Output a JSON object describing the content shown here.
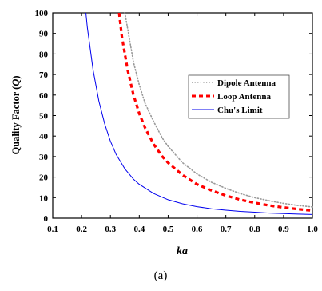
{
  "chart_data": {
    "type": "line",
    "title": "",
    "xlabel": "ka",
    "ylabel_prefix": "Quality Factor (",
    "ylabel_var": "Q",
    "ylabel_suffix": ")",
    "caption": "(a)",
    "xlim": [
      0.1,
      1.0
    ],
    "ylim": [
      0,
      100
    ],
    "xticks": [
      0.1,
      0.2,
      0.3,
      0.4,
      0.5,
      0.6,
      0.7,
      0.8,
      0.9,
      1.0
    ],
    "xtick_labels": [
      "0.1",
      "0.2",
      "0.3",
      "0.4",
      "0.5",
      "0.6",
      "0.7",
      "0.8",
      "0.9",
      "1.0"
    ],
    "yticks": [
      0,
      10,
      20,
      30,
      40,
      50,
      60,
      70,
      80,
      90,
      100
    ],
    "ytick_labels": [
      "0",
      "10",
      "20",
      "30",
      "40",
      "50",
      "60",
      "70",
      "80",
      "90",
      "100"
    ],
    "legend_position": "right",
    "series": [
      {
        "name": "Dipole Antenna",
        "color": "#9a9a9a",
        "style": "dotted",
        "x": [
          0.35,
          0.36,
          0.38,
          0.4,
          0.42,
          0.45,
          0.48,
          0.5,
          0.55,
          0.6,
          0.65,
          0.7,
          0.75,
          0.8,
          0.85,
          0.9,
          0.95,
          1.0
        ],
        "y": [
          100,
          92,
          76,
          65,
          56,
          47,
          39,
          35,
          27,
          21.5,
          17.5,
          14.5,
          12,
          10,
          8.5,
          7.2,
          6.2,
          5.5
        ]
      },
      {
        "name": "Loop Antenna",
        "color": "#ff0000",
        "style": "dashed",
        "x": [
          0.33,
          0.34,
          0.36,
          0.38,
          0.4,
          0.42,
          0.45,
          0.48,
          0.5,
          0.55,
          0.6,
          0.65,
          0.7,
          0.75,
          0.8,
          0.85,
          0.9,
          0.95,
          1.0
        ],
        "y": [
          100,
          88,
          72,
          60,
          51,
          44,
          36,
          30,
          27,
          21,
          16.5,
          13.5,
          11,
          9,
          7.5,
          6.2,
          5.2,
          4.4,
          3.7
        ]
      },
      {
        "name": "Chu's Limit",
        "color": "#0000ee",
        "style": "solid",
        "x": [
          0.215,
          0.22,
          0.24,
          0.26,
          0.28,
          0.3,
          0.32,
          0.35,
          0.38,
          0.4,
          0.45,
          0.5,
          0.55,
          0.6,
          0.65,
          0.7,
          0.75,
          0.8,
          0.85,
          0.9,
          0.95,
          1.0
        ],
        "y": [
          100,
          93,
          72,
          57,
          46,
          37.5,
          31,
          24,
          19,
          16.5,
          12,
          9,
          7,
          5.6,
          4.6,
          3.9,
          3.3,
          2.9,
          2.5,
          2.2,
          2.0,
          1.8
        ]
      }
    ]
  }
}
